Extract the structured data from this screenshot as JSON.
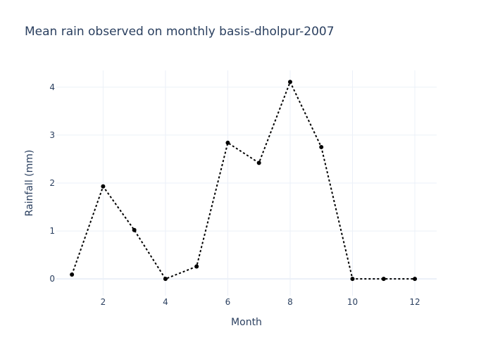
{
  "chart_data": {
    "type": "line",
    "title": "Mean rain observed on monthly basis-dholpur-2007",
    "xlabel": "Month",
    "ylabel": "Rainfall (mm)",
    "x": [
      1,
      2,
      3,
      4,
      5,
      6,
      7,
      8,
      9,
      10,
      11,
      12
    ],
    "series": [
      {
        "values": [
          0.09,
          1.93,
          1.02,
          0.0,
          0.26,
          2.84,
          2.42,
          4.11,
          2.75,
          0.0,
          0.0,
          0.0
        ]
      }
    ],
    "xlim": [
      0.5,
      12.7
    ],
    "ylim": [
      -0.35,
      4.35
    ],
    "x_ticks": [
      2,
      4,
      6,
      8,
      10,
      12
    ],
    "y_ticks": [
      0,
      1,
      2,
      3,
      4
    ],
    "grid": true,
    "line_style": "dotted",
    "line_color": "#000000",
    "marker_color": "#000000",
    "title_color": "#2a3f5f",
    "grid_color": "#ebf0f8"
  }
}
